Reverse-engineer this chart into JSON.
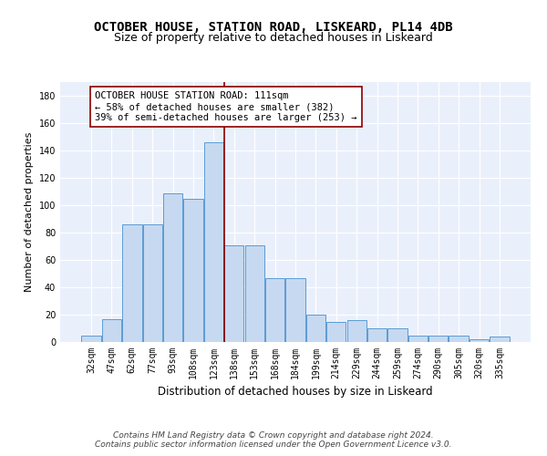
{
  "title": "OCTOBER HOUSE, STATION ROAD, LISKEARD, PL14 4DB",
  "subtitle": "Size of property relative to detached houses in Liskeard",
  "xlabel": "Distribution of detached houses by size in Liskeard",
  "ylabel": "Number of detached properties",
  "categories": [
    "32sqm",
    "47sqm",
    "62sqm",
    "77sqm",
    "93sqm",
    "108sqm",
    "123sqm",
    "138sqm",
    "153sqm",
    "168sqm",
    "184sqm",
    "199sqm",
    "214sqm",
    "229sqm",
    "244sqm",
    "259sqm",
    "274sqm",
    "290sqm",
    "305sqm",
    "320sqm",
    "335sqm"
  ],
  "values": [
    5,
    17,
    86,
    86,
    109,
    105,
    146,
    71,
    71,
    47,
    47,
    20,
    15,
    16,
    10,
    10,
    5,
    5,
    5,
    2,
    4
  ],
  "bar_color": "#c6d9f0",
  "bar_edge_color": "#5b9bd5",
  "vline_x": 6.5,
  "vline_color": "#8b0000",
  "annotation_text": "OCTOBER HOUSE STATION ROAD: 111sqm\n← 58% of detached houses are smaller (382)\n39% of semi-detached houses are larger (253) →",
  "annotation_box_color": "#ffffff",
  "annotation_box_edge_color": "#8b0000",
  "ylim": [
    0,
    190
  ],
  "yticks": [
    0,
    20,
    40,
    60,
    80,
    100,
    120,
    140,
    160,
    180
  ],
  "background_color": "#eaf0fb",
  "footer_text": "Contains HM Land Registry data © Crown copyright and database right 2024.\nContains public sector information licensed under the Open Government Licence v3.0.",
  "title_fontsize": 10,
  "subtitle_fontsize": 9,
  "xlabel_fontsize": 8.5,
  "ylabel_fontsize": 8,
  "tick_fontsize": 7,
  "annotation_fontsize": 7.5,
  "footer_fontsize": 6.5
}
